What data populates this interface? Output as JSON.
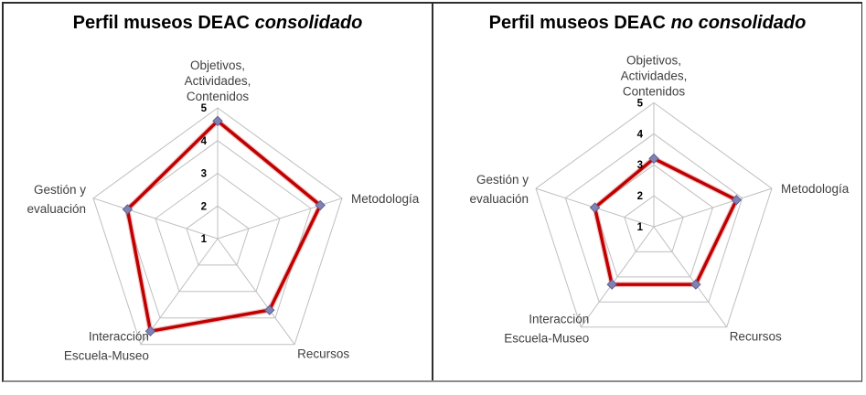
{
  "chart_data": [
    {
      "type": "radar",
      "title": "Perfil museos DEAC consolidado",
      "title_parts": {
        "regular": "Perfil museos DEAC",
        "italic": "consolidado"
      },
      "categories": [
        "Objetivos, Actividades, Contenidos",
        "Metodología",
        "Recursos",
        "Interacción Escuela-Museo",
        "Gestión y evaluación"
      ],
      "label_lines": [
        [
          "Objetivos,",
          "Actividades,",
          "Contenidos"
        ],
        [
          "Metodología"
        ],
        [
          "Recursos"
        ],
        [
          "Interacción",
          "Escuela-Museo"
        ],
        [
          "Gestión y",
          "evaluación"
        ]
      ],
      "values": [
        4.6,
        4.3,
        3.7,
        4.5,
        3.9
      ],
      "axis_min": 1,
      "axis_max": 5,
      "tick_labels": [
        "1",
        "2",
        "3",
        "4",
        "5"
      ],
      "grid": true,
      "legend": "none"
    },
    {
      "type": "radar",
      "title": "Perfil museos DEAC no consolidado",
      "title_parts": {
        "regular": "Perfil museos DEAC",
        "italic": "no consolidado"
      },
      "categories": [
        "Objetivos, Actividades, Contenidos",
        "Metodología",
        "Recursos",
        "Interacción Escuela-Museo",
        "Gestión y evaluación"
      ],
      "label_lines": [
        [
          "Objetivos,",
          "Actividades,",
          "Contenidos"
        ],
        [
          "Metodología"
        ],
        [
          "Recursos"
        ],
        [
          "Interacción",
          "Escuela-Museo"
        ],
        [
          "Gestión y",
          "evaluación"
        ]
      ],
      "values": [
        3.2,
        3.8,
        3.3,
        3.3,
        3.0
      ],
      "axis_min": 1,
      "axis_max": 5,
      "tick_labels": [
        "1",
        "2",
        "3",
        "4",
        "5"
      ],
      "grid": true,
      "legend": "none"
    }
  ],
  "colors": {
    "series_line": "#C00000",
    "series_halo": "rgba(192,0,0,0.22)",
    "marker_fill": "#8181B2",
    "marker_stroke": "#5E5E94",
    "grid_line": "#BFBFBF",
    "category_text": "#3F3F3F",
    "tick_text": "#000000",
    "frame_border": "#2e2e2e"
  }
}
